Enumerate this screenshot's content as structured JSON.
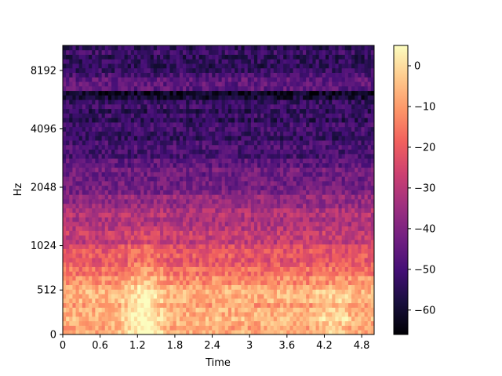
{
  "chart_data": {
    "type": "heatmap",
    "subtype": "mel-spectrogram",
    "title": "",
    "xlabel": "Time",
    "ylabel": "Hz",
    "colormap": "magma",
    "x_ticks": [
      "0",
      "0.6",
      "1.2",
      "1.8",
      "2.4",
      "3",
      "3.6",
      "4.2",
      "4.8"
    ],
    "x_tick_values": [
      0,
      0.6,
      1.2,
      1.8,
      2.4,
      3.0,
      3.6,
      4.2,
      4.8
    ],
    "xlim": [
      0,
      5.0
    ],
    "y_ticks": [
      "0",
      "512",
      "1024",
      "2048",
      "4096",
      "8192"
    ],
    "y_tick_values": [
      0,
      512,
      1024,
      2048,
      4096,
      8192
    ],
    "ylim": [
      0,
      11025
    ],
    "yscale": "mel",
    "colorbar": {
      "range": [
        -66,
        5
      ],
      "ticks": [
        "0",
        "−10",
        "−20",
        "−30",
        "−40",
        "−50",
        "−60"
      ],
      "tick_values": [
        0,
        -10,
        -20,
        -30,
        -40,
        -50,
        -60
      ]
    },
    "features": {
      "time_bins": 96,
      "mel_bins": 64,
      "loudest_region": {
        "time": [
          1.0,
          1.6
        ],
        "freq_hz": [
          0,
          600
        ],
        "db": 0
      },
      "band_rows_db": {
        "low_0_500Hz": -8,
        "mid_500_1000Hz": -25,
        "upper_1_2kHz": -40,
        "high_2_11kHz": -52,
        "bright_band_6500Hz": -45,
        "dark_band_5500Hz": -60
      }
    }
  },
  "colors": {
    "magma": [
      "#000004",
      "#180f3d",
      "#440f76",
      "#721f81",
      "#9e2f7f",
      "#cd4071",
      "#f1605d",
      "#fd9668",
      "#feca8d",
      "#fcfdbf"
    ]
  }
}
